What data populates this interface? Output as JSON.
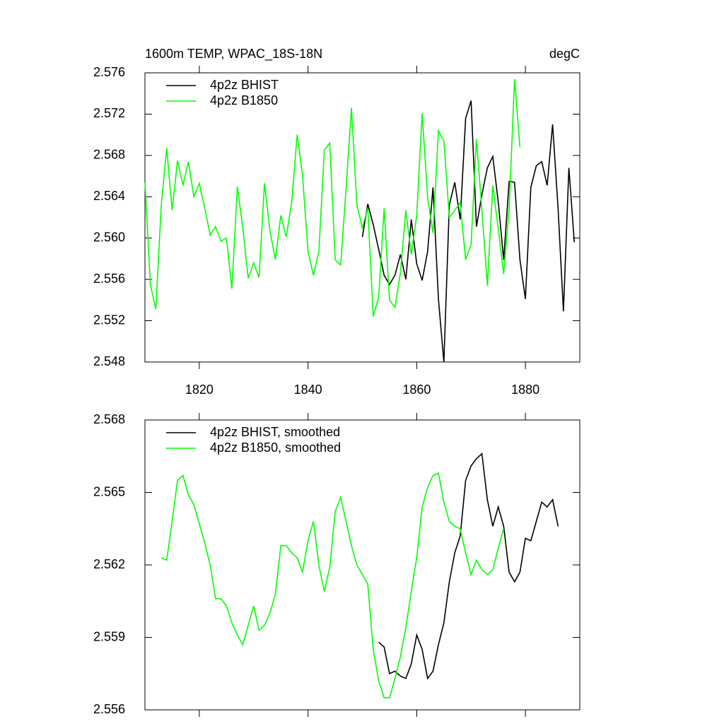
{
  "chart_data": [
    {
      "type": "line",
      "title": "1600m TEMP, WPAC_18S-18N",
      "units": "degC",
      "xlim": [
        1810,
        1890
      ],
      "xticks": [
        1820,
        1840,
        1860,
        1880
      ],
      "show_xtick_labels": true,
      "ylim": [
        2.548,
        2.576
      ],
      "yticks": [
        2.548,
        2.552,
        2.556,
        {
          "value": 2.56,
          "label": "2.560"
        },
        2.564,
        2.568,
        2.572,
        2.576
      ],
      "legend": "upper left",
      "series": [
        {
          "name": "4p2z BHIST",
          "color": "#000000",
          "x": [
            1850,
            1851,
            1852,
            1853,
            1854,
            1855,
            1856,
            1857,
            1858,
            1859,
            1860,
            1861,
            1862,
            1863,
            1864,
            1865,
            1866,
            1867,
            1868,
            1869,
            1870,
            1871,
            1872,
            1873,
            1874,
            1875,
            1876,
            1877,
            1878,
            1879,
            1880,
            1881,
            1882,
            1883,
            1884,
            1885,
            1886,
            1887,
            1888,
            1889
          ],
          "values": [
            2.5601,
            2.5633,
            2.5613,
            2.5589,
            2.5564,
            2.5555,
            2.5564,
            2.5584,
            2.556,
            2.5618,
            2.5575,
            2.5559,
            2.5587,
            2.5649,
            2.5541,
            2.548,
            2.5632,
            2.5654,
            2.5618,
            2.5716,
            2.5733,
            2.5611,
            2.5642,
            2.5668,
            2.5679,
            2.5635,
            2.5579,
            2.5655,
            2.5654,
            2.5579,
            2.5541,
            2.5649,
            2.567,
            2.5674,
            2.5651,
            2.571,
            2.5629,
            2.5529,
            2.5668,
            2.5596
          ]
        },
        {
          "name": "4p2z B1850",
          "color": "#00ff00",
          "x": [
            1810,
            1811,
            1812,
            1813,
            1814,
            1815,
            1816,
            1817,
            1818,
            1819,
            1820,
            1821,
            1822,
            1823,
            1824,
            1825,
            1826,
            1827,
            1828,
            1829,
            1830,
            1831,
            1832,
            1833,
            1834,
            1835,
            1836,
            1837,
            1838,
            1839,
            1840,
            1841,
            1842,
            1843,
            1844,
            1845,
            1846,
            1847,
            1848,
            1849,
            1850,
            1851,
            1852,
            1853,
            1854,
            1855,
            1856,
            1857,
            1858,
            1859,
            1860,
            1861,
            1862,
            1863,
            1864,
            1865,
            1866,
            1867,
            1868,
            1869,
            1870,
            1871,
            1872,
            1873,
            1874,
            1875,
            1876,
            1877,
            1878,
            1879
          ],
          "values": [
            2.5654,
            2.5555,
            2.5531,
            2.5632,
            2.5687,
            2.5627,
            2.5675,
            2.5651,
            2.5674,
            2.564,
            2.5653,
            2.5629,
            2.5603,
            2.5611,
            2.5597,
            2.56,
            2.5551,
            2.565,
            2.561,
            2.5561,
            2.5576,
            2.5562,
            2.5653,
            2.5607,
            2.5579,
            2.5622,
            2.5601,
            2.5635,
            2.57,
            2.5661,
            2.5587,
            2.5564,
            2.5587,
            2.5685,
            2.5692,
            2.5579,
            2.5574,
            2.5647,
            2.5726,
            2.5632,
            2.561,
            2.5629,
            2.5524,
            2.5543,
            2.5629,
            2.554,
            2.5533,
            2.5566,
            2.5627,
            2.5584,
            2.5622,
            2.5721,
            2.5639,
            2.5605,
            2.5704,
            2.5694,
            2.562,
            2.5627,
            2.5634,
            2.5579,
            2.5594,
            2.5696,
            2.5627,
            2.5554,
            2.5651,
            2.5609,
            2.5565,
            2.5629,
            2.5754,
            2.5688
          ]
        }
      ]
    },
    {
      "type": "line",
      "xlim": [
        1810,
        1890
      ],
      "xticks": [
        1820,
        1840,
        1860,
        1880
      ],
      "show_xtick_labels": false,
      "ylim": [
        2.556,
        2.568
      ],
      "yticks": [
        2.556,
        2.559,
        2.562,
        2.565,
        2.568
      ],
      "legend": "upper left",
      "series": [
        {
          "name": "4p2z BHIST, smoothed",
          "color": "#000000",
          "x": [
            1853,
            1854,
            1855,
            1856,
            1857,
            1858,
            1859,
            1860,
            1861,
            1862,
            1863,
            1864,
            1865,
            1866,
            1867,
            1868,
            1869,
            1870,
            1871,
            1872,
            1873,
            1874,
            1875,
            1876,
            1877,
            1878,
            1879,
            1880,
            1881,
            1882,
            1883,
            1884,
            1885,
            1886
          ],
          "values": [
            2.5588,
            2.5586,
            2.5575,
            2.5576,
            2.5574,
            2.5573,
            2.5579,
            2.5591,
            2.5585,
            2.5573,
            2.5576,
            2.5587,
            2.5596,
            2.5613,
            2.5625,
            2.5632,
            2.5655,
            2.5661,
            2.5664,
            2.5666,
            2.5647,
            2.5636,
            2.5644,
            2.5636,
            2.5617,
            2.5613,
            2.5617,
            2.5631,
            2.563,
            2.5638,
            2.5646,
            2.5644,
            2.5647,
            2.5636
          ]
        },
        {
          "name": "4p2z B1850, smoothed",
          "color": "#00ff00",
          "x": [
            1813,
            1814,
            1815,
            1816,
            1817,
            1818,
            1819,
            1820,
            1821,
            1822,
            1823,
            1824,
            1825,
            1826,
            1827,
            1828,
            1829,
            1830,
            1831,
            1832,
            1833,
            1834,
            1835,
            1836,
            1837,
            1838,
            1839,
            1840,
            1841,
            1842,
            1843,
            1844,
            1845,
            1846,
            1847,
            1848,
            1849,
            1850,
            1851,
            1852,
            1853,
            1854,
            1855,
            1856,
            1857,
            1858,
            1859,
            1860,
            1861,
            1862,
            1863,
            1864,
            1865,
            1866,
            1867,
            1868,
            1869,
            1870,
            1871,
            1872,
            1873,
            1874,
            1875,
            1876
          ],
          "values": [
            2.5623,
            2.5622,
            2.5638,
            2.5655,
            2.5657,
            2.5649,
            2.5645,
            2.5637,
            2.5629,
            2.562,
            2.5606,
            2.5606,
            2.5603,
            2.5596,
            2.5591,
            2.5587,
            2.5595,
            2.5603,
            2.5593,
            2.5595,
            2.56,
            2.5608,
            2.5628,
            2.5628,
            2.5625,
            2.5623,
            2.5617,
            2.563,
            2.5638,
            2.562,
            2.5609,
            2.5619,
            2.5642,
            2.5648,
            2.5638,
            2.5628,
            2.562,
            2.5616,
            2.5612,
            2.5585,
            2.5572,
            2.5565,
            2.5565,
            2.5573,
            2.5582,
            2.5594,
            2.5609,
            2.5623,
            2.5644,
            2.5652,
            2.5657,
            2.5658,
            2.5646,
            2.5638,
            2.5636,
            2.5635,
            2.5625,
            2.5616,
            2.5622,
            2.5618,
            2.5616,
            2.5618,
            2.5627,
            2.5635
          ]
        }
      ]
    }
  ]
}
